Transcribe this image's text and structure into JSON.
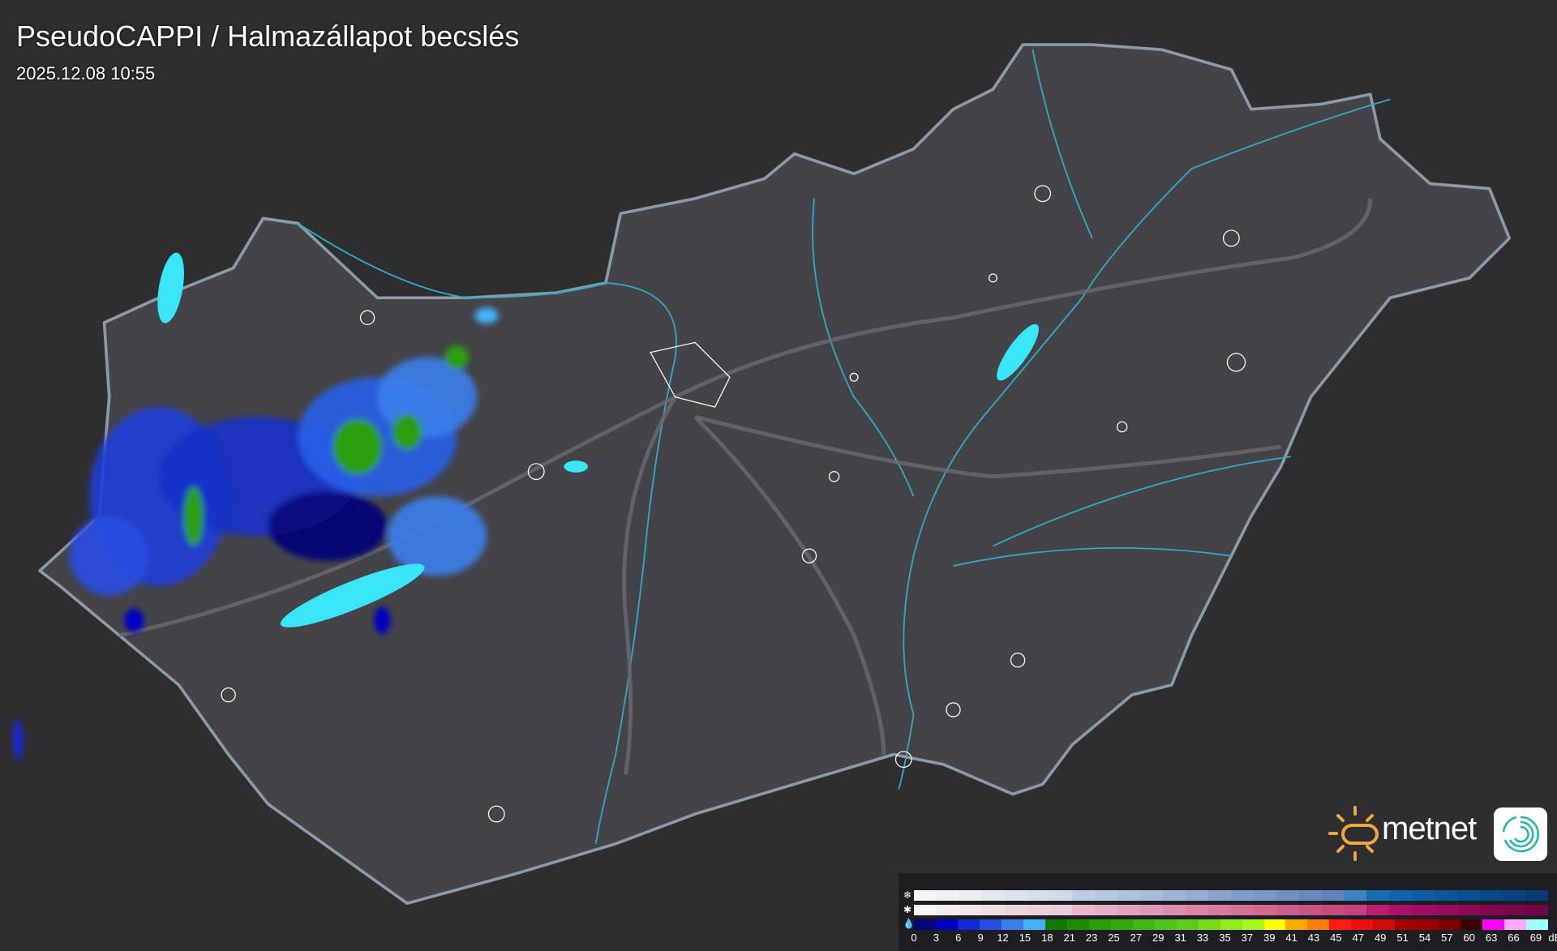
{
  "header": {
    "title": "PseudoCAPPI  / Halmazállapot becslés",
    "timestamp": "2025.12.08 10:55"
  },
  "logo": {
    "text": "metnet",
    "icon": "metnet-app-icon"
  },
  "legend": {
    "icons": [
      "snowflake-icon",
      "sleet-icon",
      "raindrop-icon"
    ],
    "unit": "dBZ",
    "labels": [
      "0",
      "3",
      "6",
      "9",
      "12",
      "15",
      "18",
      "21",
      "23",
      "25",
      "27",
      "29",
      "31",
      "33",
      "35",
      "37",
      "39",
      "41",
      "43",
      "45",
      "47",
      "49",
      "51",
      "54",
      "57",
      "60",
      "63",
      "66",
      "69"
    ],
    "snow_colors": [
      "#f6f6f8",
      "#f0f1f4",
      "#eaedf2",
      "#e2e8f0",
      "#dbe3ee",
      "#d4deec",
      "#d0dbea",
      "#bccde4",
      "#b6c8e1",
      "#aec2de",
      "#a6bcdb",
      "#9eb5d7",
      "#94add2",
      "#89a5ce",
      "#7f9dca",
      "#7898c8",
      "#6f90c3",
      "#6688be",
      "#5e82ba",
      "#3e82c0",
      "#1670b0",
      "#0f66a8",
      "#0c5ea0",
      "#0a5698",
      "#084e90",
      "#074888",
      "#064280",
      "#053c78"
    ],
    "sleet_colors": [
      "#f6f4f6",
      "#f5ecf0",
      "#f2e4ea",
      "#f0dde5",
      "#eed6e0",
      "#ecd0dc",
      "#ebccd9",
      "#e8b6ca",
      "#e6aec4",
      "#e2a2bc",
      "#e099b5",
      "#dc8eae",
      "#d984a7",
      "#d67aa0",
      "#d47199",
      "#d06892",
      "#cc5e8b",
      "#c95486",
      "#c64c80",
      "#c2417a",
      "#b81d70",
      "#ad1068",
      "#a20c62",
      "#980a5c",
      "#8e0856",
      "#840650",
      "#7a054a",
      "#700444"
    ],
    "rain_colors": [
      "#06067a",
      "#0000c4",
      "#1428d4",
      "#2a4ee2",
      "#3c7fec",
      "#45b0fa",
      "#117a00",
      "#1f8c00",
      "#2a9e08",
      "#34aa10",
      "#40b814",
      "#4ec418",
      "#5ecc18",
      "#78dc1a",
      "#94ea1e",
      "#a8f820",
      "#ffff00",
      "#ffaa00",
      "#ff7c10",
      "#ff1a14",
      "#e81010",
      "#cc0c0c",
      "#a00000",
      "#9a0000",
      "#7c0000",
      "#3c0404",
      "#ff00ff",
      "#ffaaff",
      "#a0ffff"
    ]
  },
  "colors": {
    "background": "#2b2b2e",
    "country_fill": "#48484c",
    "border": "#8a9aa6",
    "rivers": "#2fa9c8",
    "lakes": "#38e6f8"
  }
}
